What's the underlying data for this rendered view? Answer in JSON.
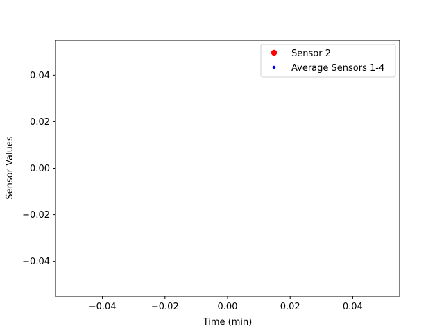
{
  "chart_data": {
    "type": "scatter",
    "title": "",
    "xlabel": "Time (min)",
    "ylabel": "Sensor Values",
    "xlim": [
      -0.055,
      0.055
    ],
    "ylim": [
      -0.055,
      0.055
    ],
    "xticks": [
      -0.04,
      -0.02,
      0.0,
      0.02,
      0.04
    ],
    "yticks": [
      -0.04,
      -0.02,
      0.0,
      0.02,
      0.04
    ],
    "xtick_labels": [
      "−0.04",
      "−0.02",
      "0.00",
      "0.02",
      "0.04"
    ],
    "ytick_labels": [
      "−0.04",
      "−0.02",
      "0.00",
      "0.02",
      "0.04"
    ],
    "grid": false,
    "legend_position": "top-right",
    "series": [
      {
        "name": "Sensor 2",
        "color": "#ff0000",
        "marker": "large-dot",
        "x": [],
        "y": []
      },
      {
        "name": "Average Sensors 1-4",
        "color": "#0000ff",
        "marker": "small-dot",
        "x": [],
        "y": []
      }
    ]
  }
}
